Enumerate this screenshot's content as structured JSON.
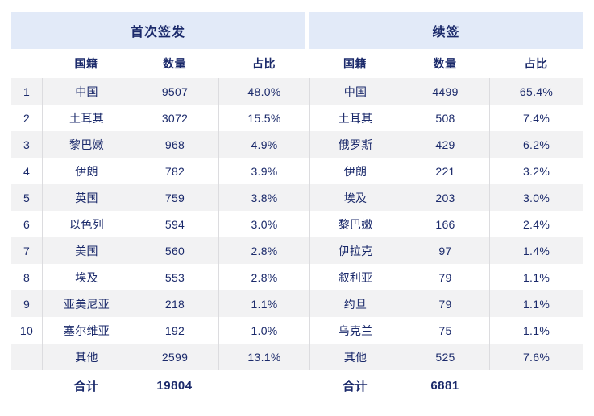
{
  "ui": {
    "total_label": "合计",
    "rank_header": ""
  },
  "colors": {
    "navy_text": "#1b2a6b",
    "band_bg": "#e2eaf8",
    "stripe": "#f2f2f3",
    "border": "#dcdcdf"
  },
  "chart_data": {
    "type": "table",
    "ranks": [
      "1",
      "2",
      "3",
      "4",
      "5",
      "6",
      "7",
      "8",
      "9",
      "10",
      ""
    ],
    "sections": [
      {
        "name": "首次签发",
        "columns": [
          "国籍",
          "数量",
          "占比"
        ],
        "rows": [
          [
            "中国",
            "9507",
            "48.0%"
          ],
          [
            "土耳其",
            "3072",
            "15.5%"
          ],
          [
            "黎巴嫩",
            "968",
            "4.9%"
          ],
          [
            "伊朗",
            "782",
            "3.9%"
          ],
          [
            "英国",
            "759",
            "3.8%"
          ],
          [
            "以色列",
            "594",
            "3.0%"
          ],
          [
            "美国",
            "560",
            "2.8%"
          ],
          [
            "埃及",
            "553",
            "2.8%"
          ],
          [
            "亚美尼亚",
            "218",
            "1.1%"
          ],
          [
            "塞尔维亚",
            "192",
            "1.0%"
          ],
          [
            "其他",
            "2599",
            "13.1%"
          ]
        ],
        "total": "19804"
      },
      {
        "name": "续签",
        "columns": [
          "国籍",
          "数量",
          "占比"
        ],
        "rows": [
          [
            "中国",
            "4499",
            "65.4%"
          ],
          [
            "土耳其",
            "508",
            "7.4%"
          ],
          [
            "俄罗斯",
            "429",
            "6.2%"
          ],
          [
            "伊朗",
            "221",
            "3.2%"
          ],
          [
            "埃及",
            "203",
            "3.0%"
          ],
          [
            "黎巴嫩",
            "166",
            "2.4%"
          ],
          [
            "伊拉克",
            "97",
            "1.4%"
          ],
          [
            "叙利亚",
            "79",
            "1.1%"
          ],
          [
            "约旦",
            "79",
            "1.1%"
          ],
          [
            "乌克兰",
            "75",
            "1.1%"
          ],
          [
            "其他",
            "525",
            "7.6%"
          ]
        ],
        "total": "6881"
      }
    ]
  }
}
